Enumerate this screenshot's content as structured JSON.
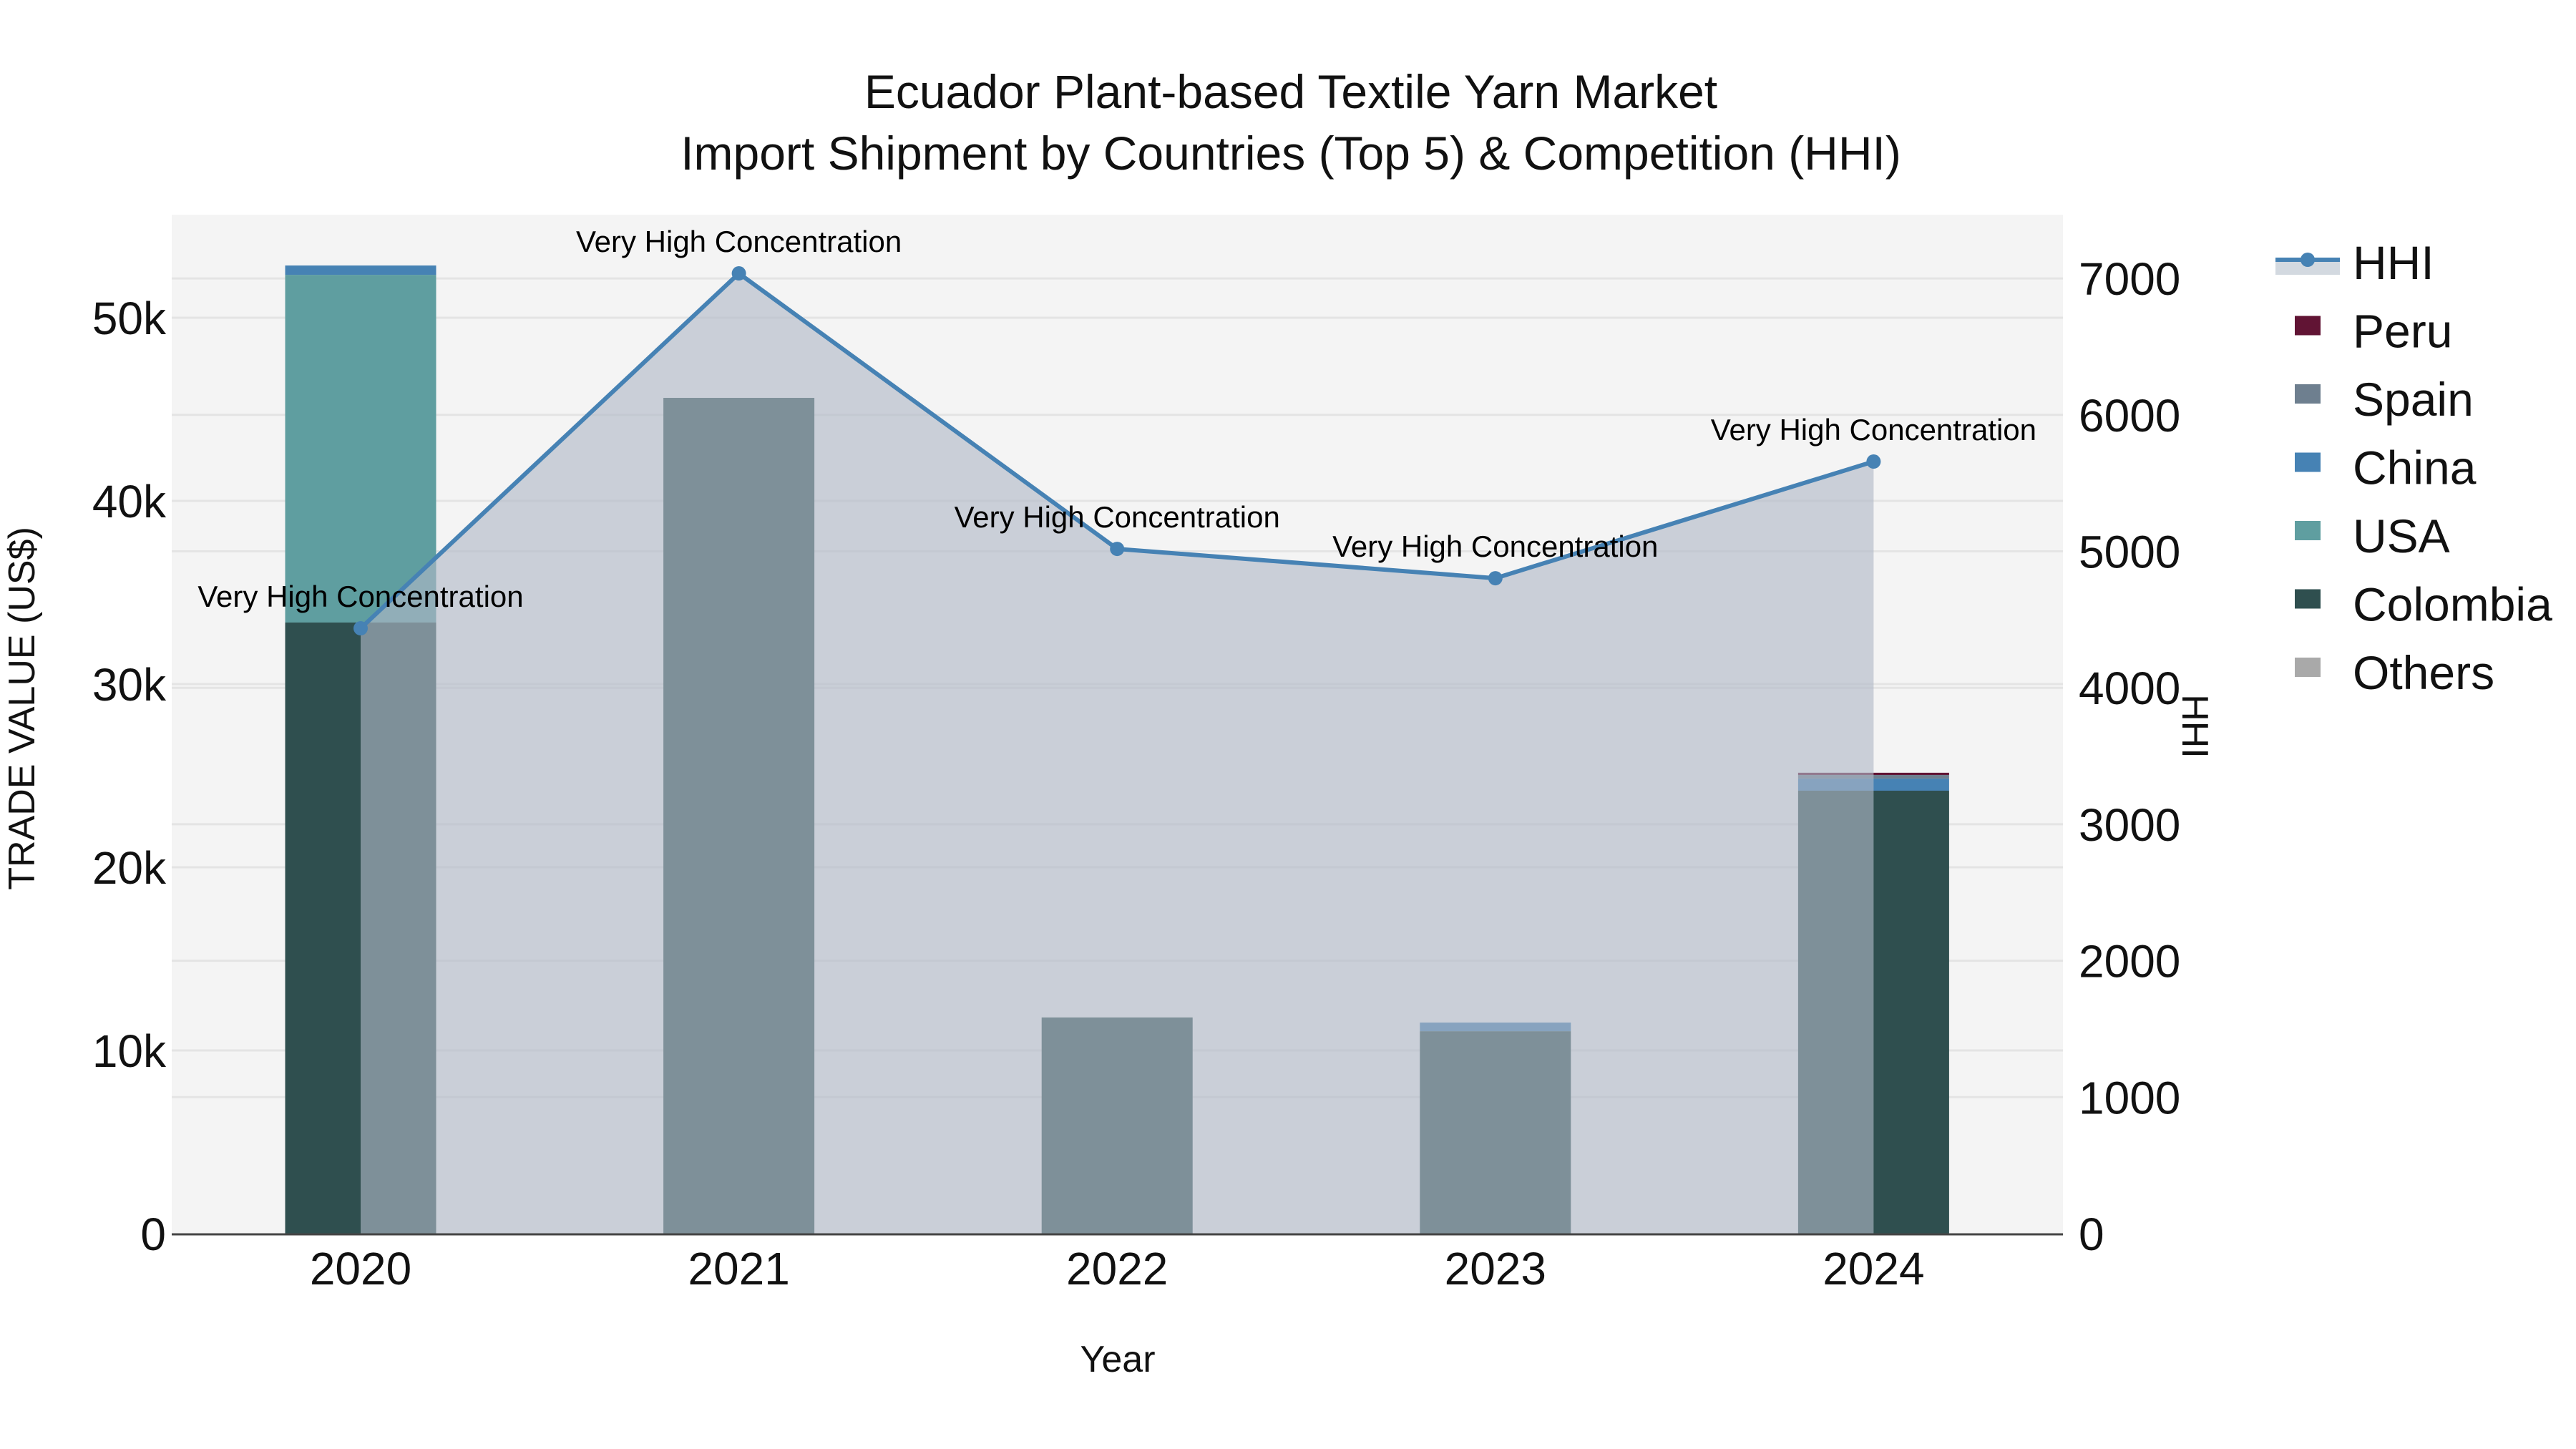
{
  "title": {
    "line1": "Ecuador Plant-based Textile Yarn Market",
    "line2": "Import Shipment by Countries (Top 5) & Competition (HHI)"
  },
  "axes": {
    "x_title": "Year",
    "y_left_title": "TRADE VALUE (US$)",
    "y_right_title": "HHI",
    "x_ticks": [
      "2020",
      "2021",
      "2022",
      "2023",
      "2024"
    ],
    "y_left_ticks": [
      "0",
      "10k",
      "20k",
      "30k",
      "40k",
      "50k"
    ],
    "y_right_ticks": [
      "0",
      "1000",
      "2000",
      "3000",
      "4000",
      "5000",
      "6000",
      "7000"
    ]
  },
  "legend": [
    {
      "name": "HHI",
      "type": "line",
      "color": "#4682b4"
    },
    {
      "name": "Peru",
      "type": "bar",
      "color": "#611434"
    },
    {
      "name": "Spain",
      "type": "bar",
      "color": "#6e7f8f"
    },
    {
      "name": "China",
      "type": "bar",
      "color": "#4682b4"
    },
    {
      "name": "USA",
      "type": "bar",
      "color": "#5f9ea0"
    },
    {
      "name": "Colombia",
      "type": "bar",
      "color": "#2f4f4f"
    },
    {
      "name": "Others",
      "type": "bar",
      "color": "#a9a9a9"
    }
  ],
  "annotations": [
    "Very High Concentration",
    "Very High Concentration",
    "Very High Concentration",
    "Very High Concentration",
    "Very High Concentration"
  ],
  "colors": {
    "plot_bg": "#f4f4f4",
    "grid": "#e4e4e4",
    "hhi_line": "#4682b4",
    "hhi_fill": "rgba(176,184,198,0.62)",
    "axis_line": "#444444"
  },
  "chart_data": {
    "type": "bar",
    "title": "Ecuador Plant-based Textile Yarn Market — Import Shipment by Countries (Top 5) & Competition (HHI)",
    "xlabel": "Year",
    "ylabel": "TRADE VALUE (US$)",
    "y2label": "HHI",
    "categories": [
      "2020",
      "2021",
      "2022",
      "2023",
      "2024"
    ],
    "stacked": true,
    "ylim": [
      0,
      55600
    ],
    "y2lim": [
      0,
      7460
    ],
    "grid": true,
    "legend_position": "right",
    "series": [
      {
        "name": "Colombia",
        "type": "bar",
        "color": "#2f4f4f",
        "values": [
          33360,
          45625,
          11800,
          11050,
          24180
        ]
      },
      {
        "name": "USA",
        "type": "bar",
        "color": "#5f9ea0",
        "values": [
          18980,
          0,
          0,
          0,
          0
        ]
      },
      {
        "name": "China",
        "type": "bar",
        "color": "#4682b4",
        "values": [
          510,
          0,
          0,
          470,
          660
        ]
      },
      {
        "name": "Spain",
        "type": "bar",
        "color": "#6e7f8f",
        "values": [
          0,
          0,
          0,
          0,
          200
        ]
      },
      {
        "name": "Peru",
        "type": "bar",
        "color": "#611434",
        "values": [
          0,
          0,
          0,
          0,
          120
        ]
      },
      {
        "name": "Others",
        "type": "bar",
        "color": "#a9a9a9",
        "values": [
          0,
          0,
          0,
          0,
          0
        ]
      },
      {
        "name": "HHI",
        "type": "line+area",
        "axis": "y2",
        "color": "#4682b4",
        "values": [
          4436,
          7037,
          5018,
          4803,
          5658
        ]
      }
    ],
    "annotations": [
      {
        "x": "2020",
        "text": "Very High Concentration"
      },
      {
        "x": "2021",
        "text": "Very High Concentration"
      },
      {
        "x": "2022",
        "text": "Very High Concentration"
      },
      {
        "x": "2023",
        "text": "Very High Concentration"
      },
      {
        "x": "2024",
        "text": "Very High Concentration"
      }
    ]
  }
}
